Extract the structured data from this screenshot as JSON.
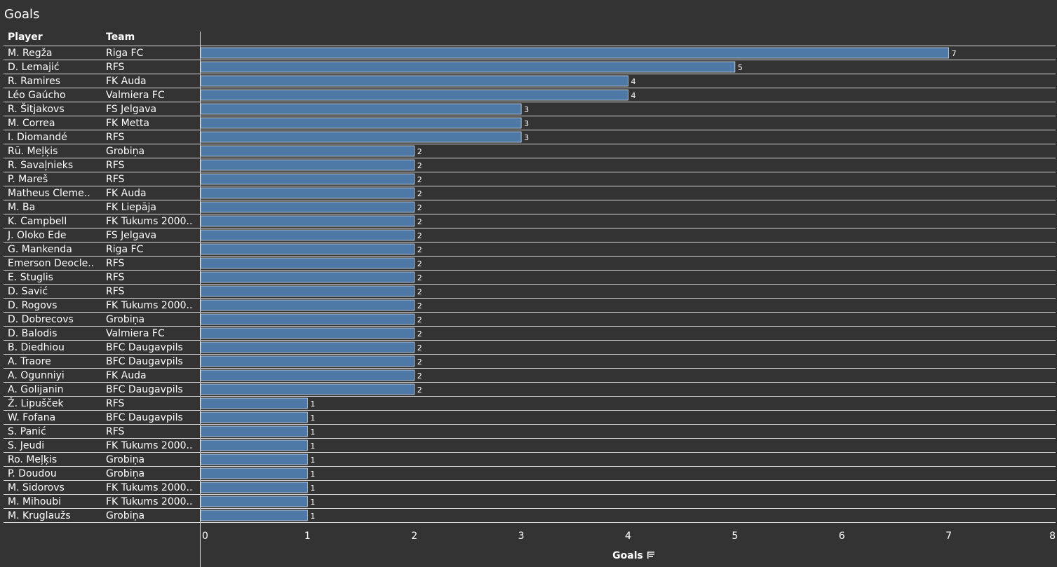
{
  "header": {
    "title": "Goals",
    "col_player": "Player",
    "col_team": "Team"
  },
  "colors": {
    "background": "#333333",
    "bar": "#4e79a7",
    "grid": "#d9d9d9",
    "text": "#ffffff"
  },
  "sort_icon": "sort-descending-icon",
  "chart_data": {
    "type": "bar",
    "orientation": "horizontal",
    "title": "Goals",
    "xlabel": "Goals",
    "xlim": [
      0,
      8
    ],
    "xticks": [
      0,
      1,
      2,
      3,
      4,
      5,
      6,
      7,
      8
    ],
    "rows": [
      {
        "player": "M. Regža",
        "team": "Riga FC",
        "goals": 7
      },
      {
        "player": "D. Lemajić",
        "team": "RFS",
        "goals": 5
      },
      {
        "player": "R. Ramires",
        "team": "FK Auda",
        "goals": 4
      },
      {
        "player": "Léo Gaúcho",
        "team": "Valmiera FC",
        "goals": 4
      },
      {
        "player": "R. Šitjakovs",
        "team": "FS Jelgava",
        "goals": 3
      },
      {
        "player": "M. Correa",
        "team": "FK Metta",
        "goals": 3
      },
      {
        "player": "I. Diomandé",
        "team": "RFS",
        "goals": 3
      },
      {
        "player": "Rū. Meļķis",
        "team": "Grobiņa",
        "goals": 2
      },
      {
        "player": "R. Savaļnieks",
        "team": "RFS",
        "goals": 2
      },
      {
        "player": "P. Mareš",
        "team": "RFS",
        "goals": 2
      },
      {
        "player": "Matheus Cleme..",
        "team": "FK Auda",
        "goals": 2
      },
      {
        "player": "M. Ba",
        "team": "FK Liepāja",
        "goals": 2
      },
      {
        "player": "K. Campbell",
        "team": "FK Tukums 2000..",
        "goals": 2
      },
      {
        "player": "J. Oloko Ede",
        "team": "FS Jelgava",
        "goals": 2
      },
      {
        "player": "G. Mankenda",
        "team": "Riga FC",
        "goals": 2
      },
      {
        "player": "Emerson Deocle..",
        "team": "RFS",
        "goals": 2
      },
      {
        "player": "E. Stuglis",
        "team": "RFS",
        "goals": 2
      },
      {
        "player": "D. Savić",
        "team": "RFS",
        "goals": 2
      },
      {
        "player": "D. Rogovs",
        "team": "FK Tukums 2000..",
        "goals": 2
      },
      {
        "player": "D. Dobrecovs",
        "team": "Grobiņa",
        "goals": 2
      },
      {
        "player": "D. Balodis",
        "team": "Valmiera FC",
        "goals": 2
      },
      {
        "player": "B. Diedhiou",
        "team": "BFC Daugavpils",
        "goals": 2
      },
      {
        "player": "A. Traore",
        "team": "BFC Daugavpils",
        "goals": 2
      },
      {
        "player": "A. Ogunniyi",
        "team": "FK Auda",
        "goals": 2
      },
      {
        "player": "A. Golijanin",
        "team": "BFC Daugavpils",
        "goals": 2
      },
      {
        "player": "Ž. Lipušček",
        "team": "RFS",
        "goals": 1
      },
      {
        "player": "W. Fofana",
        "team": "BFC Daugavpils",
        "goals": 1
      },
      {
        "player": "S. Panić",
        "team": "RFS",
        "goals": 1
      },
      {
        "player": "S. Jeudi",
        "team": "FK Tukums 2000..",
        "goals": 1
      },
      {
        "player": "Ro. Meļķis",
        "team": "Grobiņa",
        "goals": 1
      },
      {
        "player": "P. Doudou",
        "team": "Grobiņa",
        "goals": 1
      },
      {
        "player": "M. Sidorovs",
        "team": "FK Tukums 2000..",
        "goals": 1
      },
      {
        "player": "M. Mihoubi",
        "team": "FK Tukums 2000..",
        "goals": 1
      },
      {
        "player": "M. Kruglaužs",
        "team": "Grobiņa",
        "goals": 1
      }
    ]
  }
}
